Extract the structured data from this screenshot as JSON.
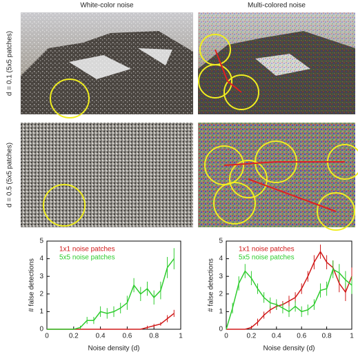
{
  "figure": {
    "columns": [
      "White-color noise",
      "Multi-colored noise"
    ],
    "rows": [
      "d = 0.1 (5x5 patches)",
      "d = 0.5 (5x5 patches)"
    ]
  },
  "chart_data": [
    {
      "type": "line",
      "xlabel": "Noise density (d)",
      "ylabel": "# false detections",
      "legend": "upper left",
      "x": [
        0,
        0.05,
        0.1,
        0.15,
        0.2,
        0.25,
        0.3,
        0.35,
        0.4,
        0.45,
        0.5,
        0.55,
        0.6,
        0.65,
        0.7,
        0.75,
        0.8,
        0.85,
        0.9,
        0.95
      ],
      "series": [
        {
          "name": "1x1 noise patches",
          "color": "#d01818",
          "values": [
            0,
            0,
            0,
            0,
            0,
            0,
            0,
            0,
            0,
            0,
            0,
            0,
            0,
            0,
            0,
            0.1,
            0.2,
            0.3,
            0.6,
            0.9
          ],
          "errors": [
            0,
            0,
            0,
            0,
            0,
            0,
            0,
            0,
            0,
            0,
            0,
            0,
            0,
            0,
            0,
            0.1,
            0.1,
            0.1,
            0.2,
            0.2
          ]
        },
        {
          "name": "5x5 noise patches",
          "color": "#2ecc2e",
          "values": [
            0,
            0,
            0,
            0,
            0,
            0.1,
            0.5,
            0.5,
            1.0,
            0.9,
            1.0,
            1.2,
            1.5,
            2.5,
            2.0,
            2.3,
            1.8,
            2.2,
            3.5,
            4.0
          ],
          "errors": [
            0,
            0,
            0,
            0,
            0,
            0.1,
            0.2,
            0.2,
            0.3,
            0.3,
            0.3,
            0.3,
            0.4,
            0.4,
            0.4,
            0.4,
            0.4,
            0.5,
            0.6,
            0.6
          ]
        }
      ],
      "xlim": [
        0,
        1
      ],
      "ylim": [
        0,
        5
      ],
      "xticks": [
        0,
        0.2,
        0.4,
        0.6,
        0.8,
        1
      ],
      "yticks": [
        0,
        1,
        2,
        3,
        4,
        5
      ]
    },
    {
      "type": "line",
      "xlabel": "Noise density (d)",
      "ylabel": "# false detections",
      "legend": "upper left",
      "x": [
        0,
        0.05,
        0.1,
        0.15,
        0.2,
        0.25,
        0.3,
        0.35,
        0.4,
        0.45,
        0.5,
        0.55,
        0.6,
        0.65,
        0.7,
        0.75,
        0.8,
        0.85,
        0.9,
        0.95,
        1
      ],
      "series": [
        {
          "name": "1x1 noise patches",
          "color": "#d01818",
          "values": [
            0,
            0,
            0,
            0,
            0.1,
            0.4,
            0.8,
            1.1,
            1.3,
            1.4,
            1.6,
            1.8,
            2.3,
            3.0,
            3.8,
            4.4,
            3.8,
            3.5,
            2.6,
            2.1,
            3.0
          ],
          "errors": [
            0,
            0,
            0,
            0,
            0.1,
            0.2,
            0.2,
            0.2,
            0.2,
            0.2,
            0.3,
            0.3,
            0.3,
            0.3,
            0.4,
            0.4,
            0.4,
            0.4,
            0.5,
            0.5,
            0.5
          ]
        },
        {
          "name": "5x5 noise patches",
          "color": "#2ecc2e",
          "values": [
            0,
            1.2,
            2.6,
            3.3,
            2.9,
            2.3,
            1.8,
            1.5,
            1.4,
            1.2,
            1.0,
            1.3,
            1.0,
            1.1,
            1.4,
            2.2,
            2.3,
            3.4,
            3.2,
            2.8,
            2.5
          ],
          "errors": [
            0,
            0.3,
            0.4,
            0.4,
            0.4,
            0.3,
            0.3,
            0.3,
            0.3,
            0.3,
            0.3,
            0.3,
            0.3,
            0.3,
            0.3,
            0.4,
            0.4,
            0.5,
            0.5,
            0.5,
            0.5
          ]
        }
      ],
      "xlim": [
        0,
        1
      ],
      "ylim": [
        0,
        5
      ],
      "xticks": [
        0,
        0.2,
        0.4,
        0.6,
        0.8,
        1
      ],
      "yticks": [
        0,
        1,
        2,
        3,
        4,
        5
      ]
    }
  ]
}
